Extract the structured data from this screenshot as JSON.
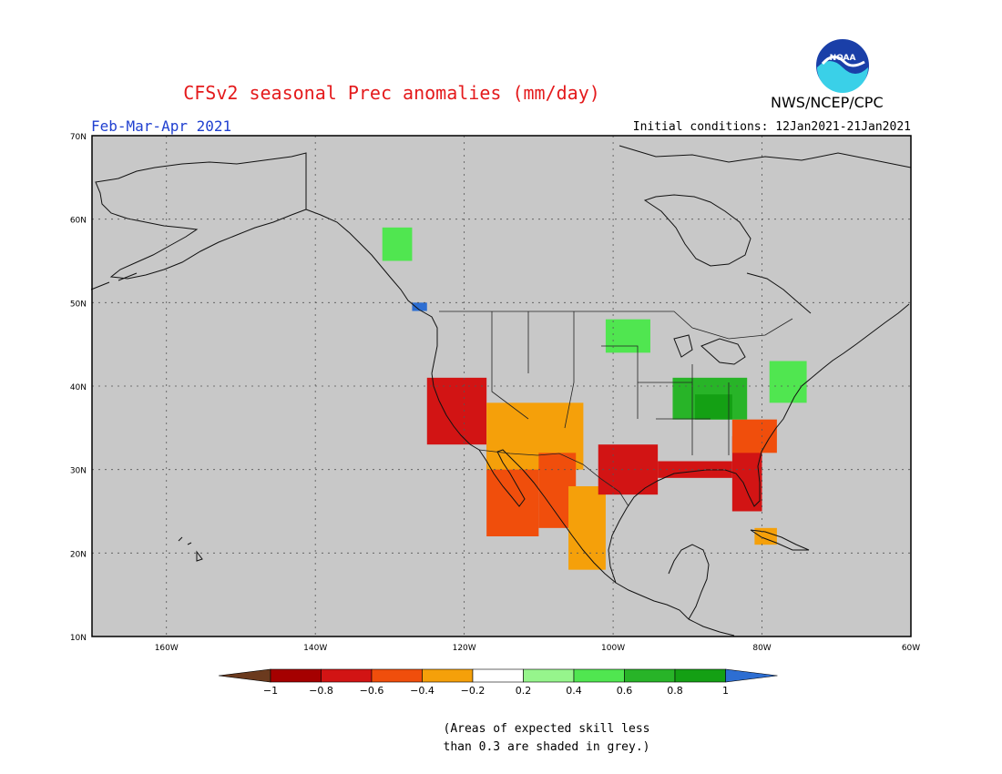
{
  "header": {
    "title": "CFSv2 seasonal Prec anomalies (mm/day)",
    "period": "Feb-Mar-Apr 2021",
    "initial_conditions": "Initial conditions: 12Jan2021-21Jan2021",
    "agency": "NWS/NCEP/CPC",
    "logo_text": "NOAA"
  },
  "map": {
    "projection": "lat-lon",
    "lon_range": [
      -170,
      -60
    ],
    "lat_range": [
      10,
      70
    ],
    "lat_labels": [
      "10N",
      "20N",
      "30N",
      "40N",
      "50N",
      "60N",
      "70N"
    ],
    "lon_labels": [
      "160W",
      "140W",
      "120W",
      "100W",
      "80W",
      "60W"
    ],
    "background_color": "#c8c8c8",
    "grid": "dotted"
  },
  "legend": {
    "tick_labels": [
      "-1",
      "-0.8",
      "-0.6",
      "-0.4",
      "-0.2",
      "0.2",
      "0.4",
      "0.6",
      "0.8",
      "1"
    ],
    "colors": [
      "#6b3a1e",
      "#a50000",
      "#d21414",
      "#f04e0c",
      "#f5a00a",
      "#ffffff",
      "#96f58c",
      "#50e650",
      "#28b428",
      "#14a014",
      "#2d6ed2"
    ]
  },
  "note": {
    "line1": "(Areas of expected skill less",
    "line2": "than 0.3 are shaded in grey.)"
  },
  "anomaly_regions": [
    {
      "name": "california-coast",
      "value": -0.8,
      "lon": [
        -125,
        -117
      ],
      "lat": [
        33,
        41
      ]
    },
    {
      "name": "baja-california",
      "value": -0.6,
      "lon": [
        -117,
        -110
      ],
      "lat": [
        22,
        33
      ]
    },
    {
      "name": "arizona-new-mexico",
      "value": -0.4,
      "lon": [
        -117,
        -104
      ],
      "lat": [
        30,
        38
      ]
    },
    {
      "name": "northwest-mexico",
      "value": -0.6,
      "lon": [
        -110,
        -105
      ],
      "lat": [
        23,
        32
      ]
    },
    {
      "name": "mexico-central",
      "value": -0.4,
      "lon": [
        -106,
        -101
      ],
      "lat": [
        18,
        28
      ]
    },
    {
      "name": "texas",
      "value": -0.8,
      "lon": [
        -102,
        -94
      ],
      "lat": [
        27,
        33
      ]
    },
    {
      "name": "gulf-coast",
      "value": -0.8,
      "lon": [
        -94,
        -84
      ],
      "lat": [
        29,
        31
      ]
    },
    {
      "name": "florida-georgia",
      "value": -0.8,
      "lon": [
        -84,
        -80
      ],
      "lat": [
        25,
        34
      ]
    },
    {
      "name": "carolinas",
      "value": -0.6,
      "lon": [
        -84,
        -78
      ],
      "lat": [
        32,
        36
      ]
    },
    {
      "name": "ohio-valley",
      "value": 0.6,
      "lon": [
        -92,
        -82
      ],
      "lat": [
        36,
        41
      ]
    },
    {
      "name": "tennessee-kentucky",
      "value": 0.8,
      "lon": [
        -89,
        -84
      ],
      "lat": [
        36,
        39
      ]
    },
    {
      "name": "upper-midwest",
      "value": 0.4,
      "lon": [
        -101,
        -95
      ],
      "lat": [
        44,
        48
      ]
    },
    {
      "name": "northeast",
      "value": 0.4,
      "lon": [
        -79,
        -74
      ],
      "lat": [
        38,
        43
      ]
    },
    {
      "name": "alaska-panhandle",
      "value": 0.4,
      "lon": [
        -131,
        -127
      ],
      "lat": [
        55,
        59
      ]
    },
    {
      "name": "vancouver-island",
      "value": 1.0,
      "lon": [
        -127,
        -125
      ],
      "lat": [
        49,
        50
      ]
    },
    {
      "name": "cuba",
      "value": -0.4,
      "lon": [
        -81,
        -78
      ],
      "lat": [
        21,
        23
      ]
    }
  ]
}
